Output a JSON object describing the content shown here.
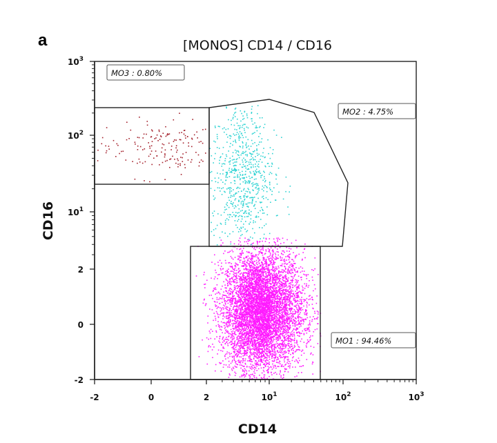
{
  "panel_letter": "a",
  "chart_data": {
    "type": "scatter",
    "title": "[MONOS] CD14 / CD16",
    "xlabel": "CD14",
    "ylabel": "CD16",
    "x_scale": "logicle",
    "y_scale": "logicle",
    "xlim": [
      -2,
      1000
    ],
    "ylim": [
      -2,
      1000
    ],
    "x_ticks": [
      "-2",
      "0",
      "2",
      "10^1",
      "10^2",
      "10^3"
    ],
    "y_ticks": [
      "-2",
      "0",
      "2",
      "10^1",
      "10^2",
      "10^3"
    ],
    "grid": false,
    "gates": [
      {
        "name": "MO1",
        "label": "MO1 : 94.46%",
        "percent": 94.46,
        "shape": "rectangle",
        "x_range": [
          1.5,
          50
        ],
        "y_range": [
          -2,
          5
        ],
        "color": "#ff1aff"
      },
      {
        "name": "MO2",
        "label": "MO2 : 4.75%",
        "percent": 4.75,
        "shape": "polygon",
        "color": "#2ed3d3",
        "vertices": [
          [
            2,
            5
          ],
          [
            2,
            230
          ],
          [
            30,
            300
          ],
          [
            150,
            180
          ],
          [
            400,
            25
          ],
          [
            300,
            5
          ]
        ]
      },
      {
        "name": "MO3",
        "label": "MO3 : 0.80%",
        "percent": 0.8,
        "shape": "rectangle",
        "x_range": [
          -2,
          2
        ],
        "y_range": [
          20,
          230
        ],
        "color": "#a31f2a"
      }
    ],
    "populations": [
      {
        "gate": "MO1",
        "color": "#ff1aff",
        "count": 6500,
        "center": [
          8,
          0.5
        ],
        "spread": [
          0.55,
          1.0
        ]
      },
      {
        "gate": "MO2",
        "color": "#2ed3d3",
        "count": 700,
        "center": [
          5,
          30
        ],
        "spread": [
          0.45,
          0.9
        ]
      },
      {
        "gate": "MO3",
        "color": "#a31f2a",
        "count": 160,
        "center": [
          0.3,
          70
        ],
        "spread": [
          1.0,
          0.35
        ]
      }
    ]
  }
}
